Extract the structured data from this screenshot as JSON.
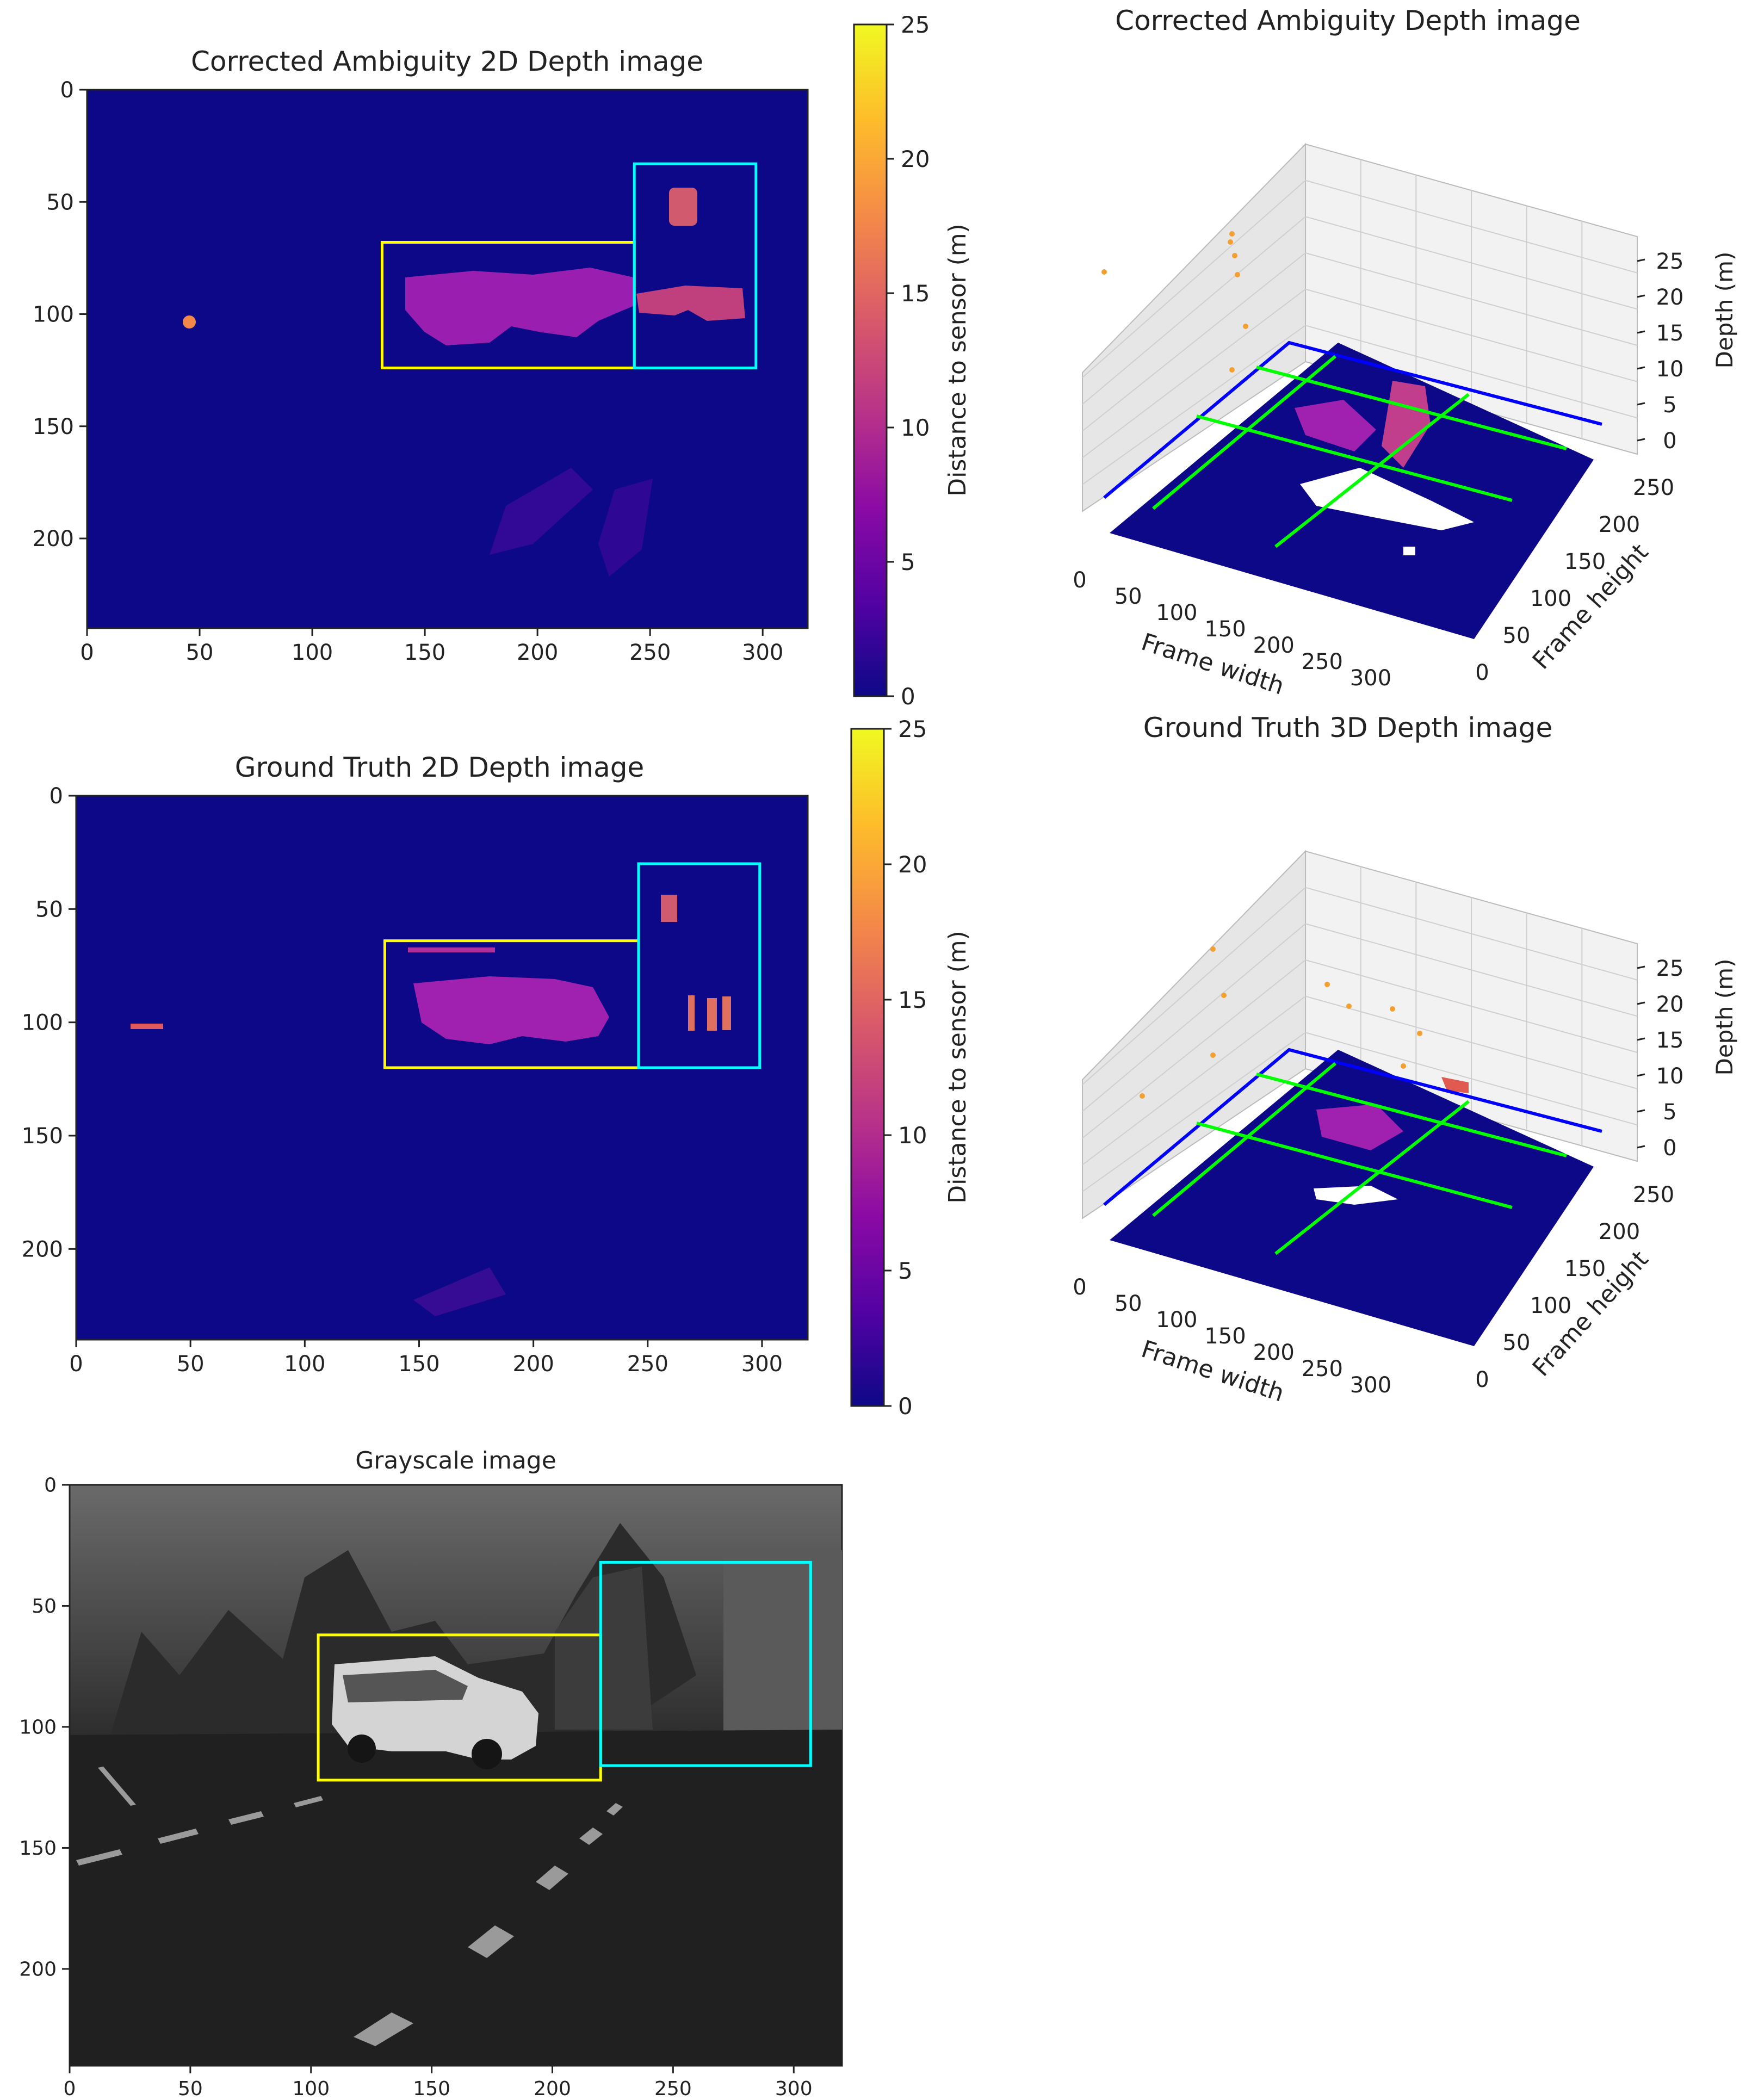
{
  "colors": {
    "background_depth": "#0d0887",
    "plasma_scale": [
      "#0d0887",
      "#5302a3",
      "#8b0aa5",
      "#b83289",
      "#db5c68",
      "#f48849",
      "#febd2a",
      "#f0f921"
    ],
    "yellow_box": "#ffff00",
    "cyan_box": "#00ffff",
    "green_lines": "#00ff00",
    "blue_line": "#0000ff"
  },
  "chart_data": [
    {
      "type": "heatmap",
      "id": "corrected-2d",
      "title": "Corrected Ambiguity 2D Depth image",
      "xticks": [
        "0",
        "50",
        "100",
        "150",
        "200",
        "250",
        "300"
      ],
      "yticks": [
        "0",
        "50",
        "100",
        "150",
        "200"
      ],
      "xlim": [
        0,
        320
      ],
      "ylim": [
        240,
        0
      ],
      "boxes": [
        {
          "color": "yellow",
          "x0": 131,
          "y0": 68,
          "x1": 243,
          "y1": 124
        },
        {
          "color": "cyan",
          "x0": 243,
          "y0": 33,
          "x1": 297,
          "y1": 124
        }
      ]
    },
    {
      "type": "scatter",
      "id": "corrected-3d",
      "title": "Corrected Ambiguity Depth image",
      "xlabel": "Frame width",
      "ylabel": "Frame height",
      "zlabel": "Depth (m)",
      "xticks": [
        "0",
        "50",
        "100",
        "150",
        "200",
        "250",
        "300"
      ],
      "yticks": [
        "0",
        "50",
        "100",
        "150",
        "200",
        "250"
      ],
      "zticks": [
        "0",
        "5",
        "10",
        "15",
        "20",
        "25"
      ]
    },
    {
      "type": "heatmap",
      "id": "groundtruth-2d",
      "title": "Ground Truth 2D Depth image",
      "xticks": [
        "0",
        "50",
        "100",
        "150",
        "200",
        "250",
        "300"
      ],
      "yticks": [
        "0",
        "50",
        "100",
        "150",
        "200"
      ],
      "xlim": [
        0,
        320
      ],
      "ylim": [
        240,
        0
      ],
      "boxes": [
        {
          "color": "yellow",
          "x0": 135,
          "y0": 64,
          "x1": 246,
          "y1": 120
        },
        {
          "color": "cyan",
          "x0": 246,
          "y0": 30,
          "x1": 299,
          "y1": 120
        }
      ]
    },
    {
      "type": "scatter",
      "id": "groundtruth-3d",
      "title": "Ground Truth 3D Depth image",
      "xlabel": "Frame width",
      "ylabel": "Frame height",
      "zlabel": "Depth (m)",
      "xticks": [
        "0",
        "50",
        "100",
        "150",
        "200",
        "250",
        "300"
      ],
      "yticks": [
        "0",
        "50",
        "100",
        "150",
        "200",
        "250"
      ],
      "zticks": [
        "0",
        "5",
        "10",
        "15",
        "20",
        "25"
      ]
    },
    {
      "type": "heatmap",
      "id": "grayscale",
      "title": "Grayscale image",
      "xticks": [
        "0",
        "50",
        "100",
        "150",
        "200",
        "250",
        "300"
      ],
      "yticks": [
        "0",
        "50",
        "100",
        "150",
        "200"
      ],
      "xlim": [
        0,
        320
      ],
      "ylim": [
        240,
        0
      ],
      "boxes": [
        {
          "color": "yellow",
          "x0": 103,
          "y0": 62,
          "x1": 220,
          "y1": 122
        },
        {
          "color": "cyan",
          "x0": 220,
          "y0": 32,
          "x1": 307,
          "y1": 116
        }
      ]
    }
  ],
  "colorbars": [
    {
      "label": "Distance to sensor (m)",
      "ticks": [
        "0",
        "5",
        "10",
        "15",
        "20",
        "25"
      ],
      "range": [
        0,
        25
      ]
    },
    {
      "label": "Distance to sensor (m)",
      "ticks": [
        "0",
        "5",
        "10",
        "15",
        "20",
        "25"
      ],
      "range": [
        0,
        25
      ]
    }
  ]
}
